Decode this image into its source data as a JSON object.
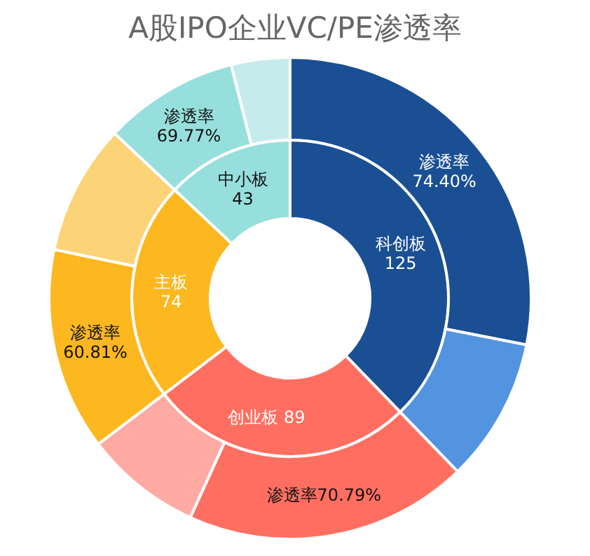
{
  "chart_data": [
    {
      "type": "donut",
      "title": "A股IPO企业VC/PE渗透率",
      "categories": [
        "科创板",
        "创业板",
        "主板",
        "中小板"
      ],
      "values": [
        125,
        89,
        74,
        43
      ],
      "colors": [
        "#1a4f94",
        "#ff6f61",
        "#fdb71f",
        "#96dfdc"
      ],
      "data_labels": true
    },
    {
      "type": "donut",
      "categories": [
        null,
        null,
        null,
        null,
        null,
        null,
        null,
        null
      ],
      "values": [
        28.1,
        9.67,
        19.03,
        7.85,
        13.6,
        8.76,
        9.06,
        3.93
      ],
      "colors": [
        "#1a4f94",
        "#5294e0",
        "#ff6f61",
        "#ffaaa3",
        "#fdb71f",
        "#fdd378",
        "#96dfdc",
        "#c5ebec"
      ],
      "value_labels": [
        "渗透率\n74.40%",
        null,
        "渗透率70.79%",
        null,
        "渗透率\n60.81%",
        null,
        "渗透率\n69.77%",
        null
      ]
    }
  ]
}
